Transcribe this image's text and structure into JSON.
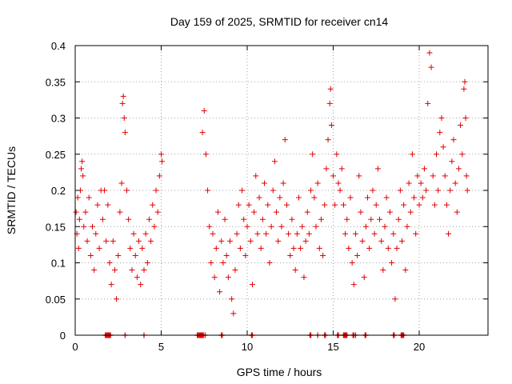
{
  "chart_data": {
    "type": "scatter",
    "title": "Day 159 of 2025, SRMTID for receiver cn14",
    "xlabel": "GPS time / hours",
    "ylabel": "SRMTID / TECUs",
    "xlim": [
      0,
      24
    ],
    "ylim": [
      0,
      0.4
    ],
    "x_ticks": [
      0,
      5,
      10,
      15,
      20
    ],
    "x_tick_labels": [
      "0",
      "5",
      "10",
      "15",
      "20"
    ],
    "y_ticks": [
      0,
      0.05,
      0.1,
      0.15,
      0.2,
      0.25,
      0.3,
      0.35,
      0.4
    ],
    "y_tick_labels": [
      "0",
      "0.05",
      "0.1",
      "0.15",
      "0.2",
      "0.25",
      "0.3",
      "0.35",
      "0.4"
    ],
    "grid": true,
    "marker": "+",
    "marker_color": "#e00000",
    "series": [
      {
        "name": "SRMTID",
        "points": [
          [
            0.05,
            0.17
          ],
          [
            0.1,
            0.14
          ],
          [
            0.15,
            0.19
          ],
          [
            0.2,
            0.12
          ],
          [
            0.25,
            0.16
          ],
          [
            0.3,
            0.2
          ],
          [
            0.35,
            0.23
          ],
          [
            0.4,
            0.24
          ],
          [
            0.45,
            0.22
          ],
          [
            0.5,
            0.15
          ],
          [
            0.6,
            0.17
          ],
          [
            0.7,
            0.13
          ],
          [
            0.8,
            0.19
          ],
          [
            0.9,
            0.11
          ],
          [
            1.0,
            0.15
          ],
          [
            1.1,
            0.09
          ],
          [
            1.2,
            0.14
          ],
          [
            1.3,
            0.18
          ],
          [
            1.4,
            0.12
          ],
          [
            1.5,
            0.2
          ],
          [
            1.6,
            0.16
          ],
          [
            1.7,
            0.2
          ],
          [
            1.8,
            0.13
          ],
          [
            1.9,
            0.18
          ],
          [
            2.0,
            0.1
          ],
          [
            2.1,
            0.07
          ],
          [
            2.2,
            0.13
          ],
          [
            2.3,
            0.09
          ],
          [
            2.4,
            0.05
          ],
          [
            2.5,
            0.11
          ],
          [
            2.6,
            0.17
          ],
          [
            2.7,
            0.21
          ],
          [
            2.75,
            0.32
          ],
          [
            2.8,
            0.33
          ],
          [
            2.85,
            0.3
          ],
          [
            2.9,
            0.28
          ],
          [
            3.0,
            0.2
          ],
          [
            3.1,
            0.16
          ],
          [
            3.2,
            0.12
          ],
          [
            3.3,
            0.09
          ],
          [
            3.4,
            0.14
          ],
          [
            3.5,
            0.11
          ],
          [
            3.6,
            0.08
          ],
          [
            3.7,
            0.13
          ],
          [
            3.8,
            0.07
          ],
          [
            3.9,
            0.12
          ],
          [
            4.0,
            0.09
          ],
          [
            4.1,
            0.14
          ],
          [
            4.2,
            0.1
          ],
          [
            4.3,
            0.16
          ],
          [
            4.4,
            0.13
          ],
          [
            4.5,
            0.18
          ],
          [
            4.6,
            0.15
          ],
          [
            4.7,
            0.2
          ],
          [
            4.8,
            0.17
          ],
          [
            4.9,
            0.22
          ],
          [
            5.0,
            0.25
          ],
          [
            5.05,
            0.24
          ],
          [
            7.4,
            0.28
          ],
          [
            7.5,
            0.31
          ],
          [
            7.6,
            0.25
          ],
          [
            7.7,
            0.2
          ],
          [
            7.8,
            0.15
          ],
          [
            7.9,
            0.1
          ],
          [
            8.0,
            0.14
          ],
          [
            8.1,
            0.08
          ],
          [
            8.2,
            0.12
          ],
          [
            8.3,
            0.17
          ],
          [
            8.4,
            0.06
          ],
          [
            8.5,
            0.13
          ],
          [
            8.6,
            0.1
          ],
          [
            8.7,
            0.16
          ],
          [
            8.8,
            0.11
          ],
          [
            8.9,
            0.08
          ],
          [
            9.0,
            0.13
          ],
          [
            9.1,
            0.05
          ],
          [
            9.2,
            0.03
          ],
          [
            9.3,
            0.09
          ],
          [
            9.4,
            0.14
          ],
          [
            9.5,
            0.18
          ],
          [
            9.6,
            0.12
          ],
          [
            9.7,
            0.2
          ],
          [
            9.8,
            0.16
          ],
          [
            9.9,
            0.11
          ],
          [
            10.0,
            0.15
          ],
          [
            10.1,
            0.18
          ],
          [
            10.2,
            0.13
          ],
          [
            10.3,
            0.07
          ],
          [
            10.4,
            0.17
          ],
          [
            10.5,
            0.22
          ],
          [
            10.6,
            0.14
          ],
          [
            10.7,
            0.19
          ],
          [
            10.8,
            0.12
          ],
          [
            10.9,
            0.16
          ],
          [
            11.0,
            0.21
          ],
          [
            11.1,
            0.14
          ],
          [
            11.2,
            0.18
          ],
          [
            11.3,
            0.1
          ],
          [
            11.4,
            0.15
          ],
          [
            11.5,
            0.2
          ],
          [
            11.6,
            0.24
          ],
          [
            11.7,
            0.17
          ],
          [
            11.8,
            0.13
          ],
          [
            11.9,
            0.19
          ],
          [
            12.0,
            0.15
          ],
          [
            12.1,
            0.21
          ],
          [
            12.2,
            0.27
          ],
          [
            12.3,
            0.18
          ],
          [
            12.4,
            0.14
          ],
          [
            12.5,
            0.11
          ],
          [
            12.6,
            0.16
          ],
          [
            12.7,
            0.12
          ],
          [
            12.8,
            0.09
          ],
          [
            12.9,
            0.14
          ],
          [
            13.0,
            0.19
          ],
          [
            13.1,
            0.12
          ],
          [
            13.2,
            0.15
          ],
          [
            13.3,
            0.08
          ],
          [
            13.4,
            0.13
          ],
          [
            13.5,
            0.17
          ],
          [
            13.6,
            0.14
          ],
          [
            13.7,
            0.2
          ],
          [
            13.8,
            0.25
          ],
          [
            13.9,
            0.19
          ],
          [
            14.0,
            0.15
          ],
          [
            14.1,
            0.21
          ],
          [
            14.2,
            0.12
          ],
          [
            14.3,
            0.16
          ],
          [
            14.4,
            0.11
          ],
          [
            14.5,
            0.18
          ],
          [
            14.6,
            0.23
          ],
          [
            14.7,
            0.27
          ],
          [
            14.8,
            0.32
          ],
          [
            14.85,
            0.34
          ],
          [
            14.9,
            0.29
          ],
          [
            15.0,
            0.22
          ],
          [
            15.1,
            0.18
          ],
          [
            15.2,
            0.25
          ],
          [
            15.3,
            0.21
          ],
          [
            15.4,
            0.2
          ],
          [
            15.5,
            0.23
          ],
          [
            15.6,
            0.18
          ],
          [
            15.7,
            0.14
          ],
          [
            15.8,
            0.16
          ],
          [
            15.9,
            0.12
          ],
          [
            16.0,
            0.19
          ],
          [
            16.1,
            0.1
          ],
          [
            16.2,
            0.07
          ],
          [
            16.3,
            0.14
          ],
          [
            16.4,
            0.11
          ],
          [
            16.5,
            0.22
          ],
          [
            16.6,
            0.17
          ],
          [
            16.7,
            0.13
          ],
          [
            16.8,
            0.08
          ],
          [
            16.9,
            0.15
          ],
          [
            17.0,
            0.19
          ],
          [
            17.1,
            0.12
          ],
          [
            17.2,
            0.16
          ],
          [
            17.3,
            0.2
          ],
          [
            17.4,
            0.14
          ],
          [
            17.5,
            0.18
          ],
          [
            17.6,
            0.23
          ],
          [
            17.7,
            0.16
          ],
          [
            17.8,
            0.13
          ],
          [
            17.9,
            0.09
          ],
          [
            18.0,
            0.15
          ],
          [
            18.1,
            0.19
          ],
          [
            18.2,
            0.12
          ],
          [
            18.3,
            0.17
          ],
          [
            18.4,
            0.1
          ],
          [
            18.5,
            0.14
          ],
          [
            18.6,
            0.05
          ],
          [
            18.7,
            0.12
          ],
          [
            18.8,
            0.16
          ],
          [
            18.9,
            0.2
          ],
          [
            19.0,
            0.13
          ],
          [
            19.1,
            0.18
          ],
          [
            19.2,
            0.09
          ],
          [
            19.3,
            0.15
          ],
          [
            19.4,
            0.21
          ],
          [
            19.5,
            0.17
          ],
          [
            19.6,
            0.25
          ],
          [
            19.7,
            0.19
          ],
          [
            19.8,
            0.14
          ],
          [
            19.9,
            0.22
          ],
          [
            20.0,
            0.18
          ],
          [
            20.1,
            0.21
          ],
          [
            20.2,
            0.19
          ],
          [
            20.3,
            0.23
          ],
          [
            20.4,
            0.2
          ],
          [
            20.5,
            0.32
          ],
          [
            20.6,
            0.39
          ],
          [
            20.7,
            0.37
          ],
          [
            20.8,
            0.22
          ],
          [
            20.9,
            0.18
          ],
          [
            21.0,
            0.25
          ],
          [
            21.1,
            0.2
          ],
          [
            21.2,
            0.28
          ],
          [
            21.3,
            0.3
          ],
          [
            21.4,
            0.26
          ],
          [
            21.5,
            0.22
          ],
          [
            21.6,
            0.18
          ],
          [
            21.7,
            0.14
          ],
          [
            21.8,
            0.2
          ],
          [
            21.9,
            0.24
          ],
          [
            22.0,
            0.27
          ],
          [
            22.1,
            0.21
          ],
          [
            22.2,
            0.17
          ],
          [
            22.3,
            0.23
          ],
          [
            22.4,
            0.29
          ],
          [
            22.5,
            0.25
          ],
          [
            22.6,
            0.34
          ],
          [
            22.65,
            0.35
          ],
          [
            22.7,
            0.3
          ],
          [
            22.75,
            0.22
          ],
          [
            22.8,
            0.2
          ]
        ]
      }
    ],
    "baseline_marks_x": [
      1.75,
      1.8,
      1.85,
      1.9,
      1.95,
      2.0,
      2.05,
      2.9,
      4.0,
      7.1,
      7.15,
      7.2,
      7.25,
      7.3,
      7.35,
      7.4,
      7.45,
      7.55,
      8.5,
      8.55,
      10.25,
      10.3,
      13.65,
      13.7,
      14.1,
      14.5,
      14.55,
      15.25,
      15.3,
      15.6,
      15.65,
      15.7,
      15.75,
      15.8,
      16.15,
      16.2,
      16.3,
      16.85,
      16.9,
      18.5,
      18.55,
      18.95,
      19.0,
      19.05,
      19.1
    ]
  }
}
